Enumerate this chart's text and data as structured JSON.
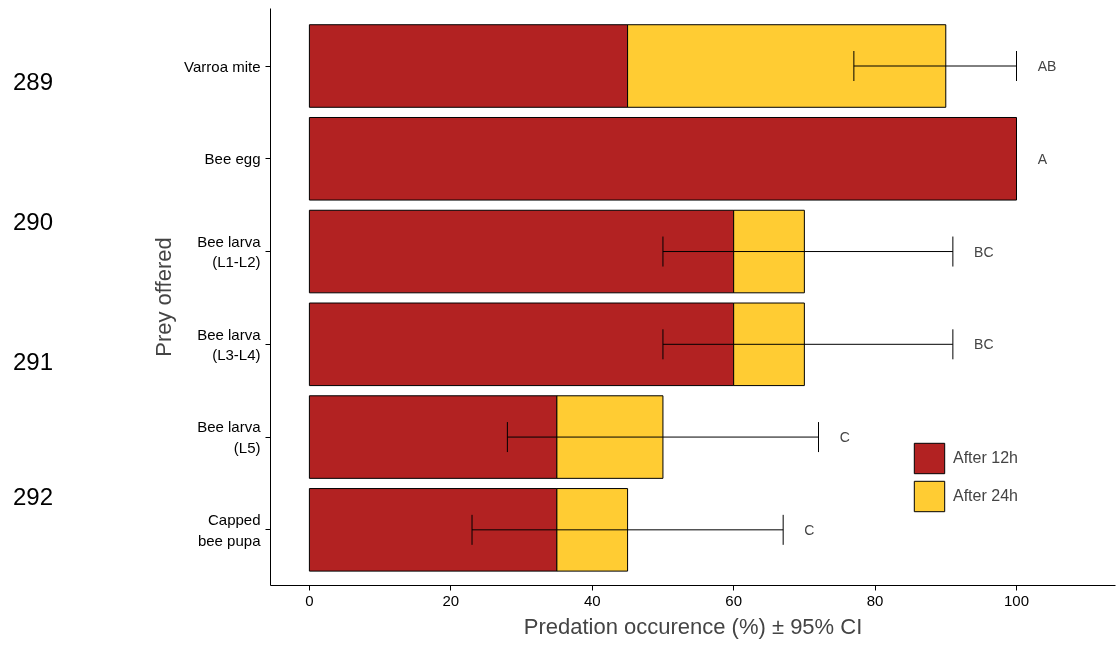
{
  "chart_data": {
    "type": "bar",
    "orientation": "horizontal",
    "stacked": true,
    "categories": [
      "Varroa mite",
      "Bee egg",
      "Bee larva\n(L1-L2)",
      "Bee larva\n(L3-L4)",
      "Bee larva\n(L5)",
      "Capped\nbee pupa"
    ],
    "series": [
      {
        "name": "After 12h",
        "color": "#b22222",
        "values": [
          45,
          100,
          60,
          60,
          35,
          35
        ]
      },
      {
        "name": "After 24h",
        "color": "#ffcc33",
        "values": [
          45,
          0,
          10,
          10,
          15,
          10
        ],
        "errors": [
          [
            77,
            100
          ],
          null,
          [
            50,
            91
          ],
          [
            50,
            91
          ],
          [
            28,
            72
          ],
          [
            23,
            67
          ]
        ]
      }
    ],
    "xlim": [
      -5.5,
      114
    ],
    "xticks": [
      0,
      20,
      40,
      60,
      80,
      100
    ],
    "xlabel": "Predation occurence (%) ± 95% CI",
    "ylabel": "Prey offered",
    "grid": false,
    "legend": "right",
    "annotations": [
      "AB",
      "A",
      "BC",
      "BC",
      "C",
      "C",
      "289",
      "290",
      "291",
      "292"
    ]
  }
}
